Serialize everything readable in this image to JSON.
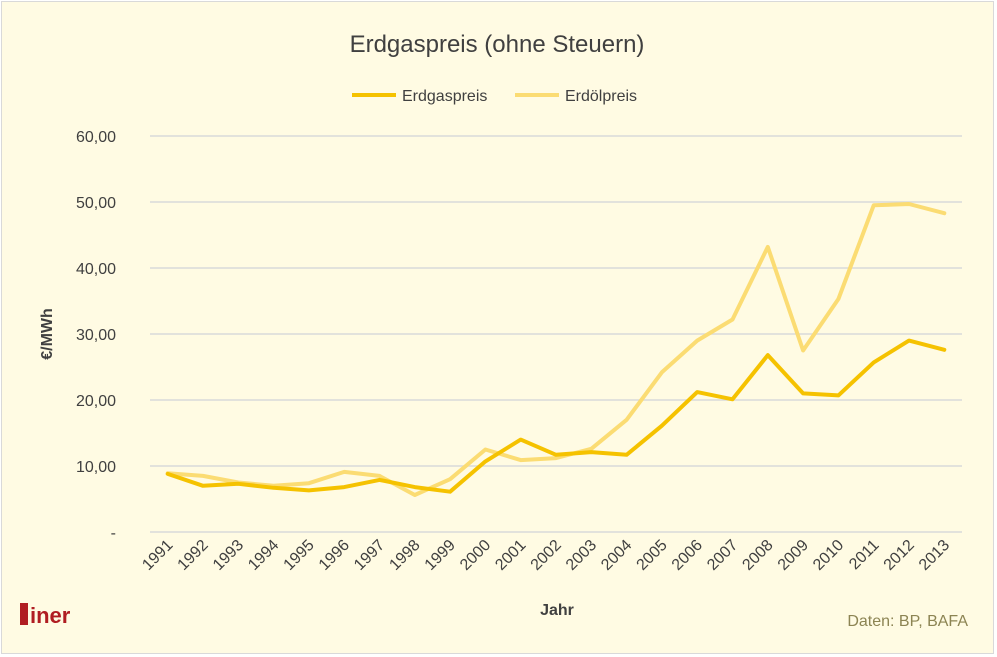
{
  "chart_data": {
    "type": "line",
    "title": "Erdgaspreis (ohne Steuern)",
    "xlabel": "Jahr",
    "ylabel": "€/MWh",
    "x": [
      "1991",
      "1992",
      "1993",
      "1994",
      "1995",
      "1996",
      "1997",
      "1998",
      "1999",
      "2000",
      "2001",
      "2002",
      "2003",
      "2004",
      "2005",
      "2006",
      "2007",
      "2008",
      "2009",
      "2010",
      "2011",
      "2012",
      "2013"
    ],
    "ylim": [
      0,
      60
    ],
    "yticks": [
      0,
      10,
      20,
      30,
      40,
      50,
      60
    ],
    "ytick_labels": [
      "-",
      "10,00",
      "20,00",
      "30,00",
      "40,00",
      "50,00",
      "60,00"
    ],
    "grid": true,
    "legend_position": "top",
    "series": [
      {
        "name": "Erdgaspreis",
        "color": "#f5c200",
        "values": [
          8.8,
          7.0,
          7.3,
          6.7,
          6.3,
          6.8,
          7.9,
          6.8,
          6.1,
          10.7,
          14.0,
          11.7,
          12.1,
          11.7,
          16.1,
          21.2,
          20.1,
          26.8,
          21.0,
          20.7,
          25.7,
          29.0,
          27.6
        ]
      },
      {
        "name": "Erdölpreis",
        "color": "#fbdc73",
        "values": [
          8.9,
          8.5,
          7.5,
          7.0,
          7.4,
          9.1,
          8.5,
          5.6,
          8.0,
          12.5,
          10.9,
          11.2,
          12.6,
          17.0,
          24.2,
          29.0,
          32.2,
          43.2,
          27.5,
          35.3,
          49.5,
          49.7,
          48.3
        ]
      }
    ],
    "source": "Daten: BP, BAFA"
  },
  "logo": {
    "text": "iner",
    "color": "#b01d22"
  },
  "colors": {
    "background": "#fffbe3",
    "grid": "#d9d9d9",
    "text": "#404040"
  }
}
